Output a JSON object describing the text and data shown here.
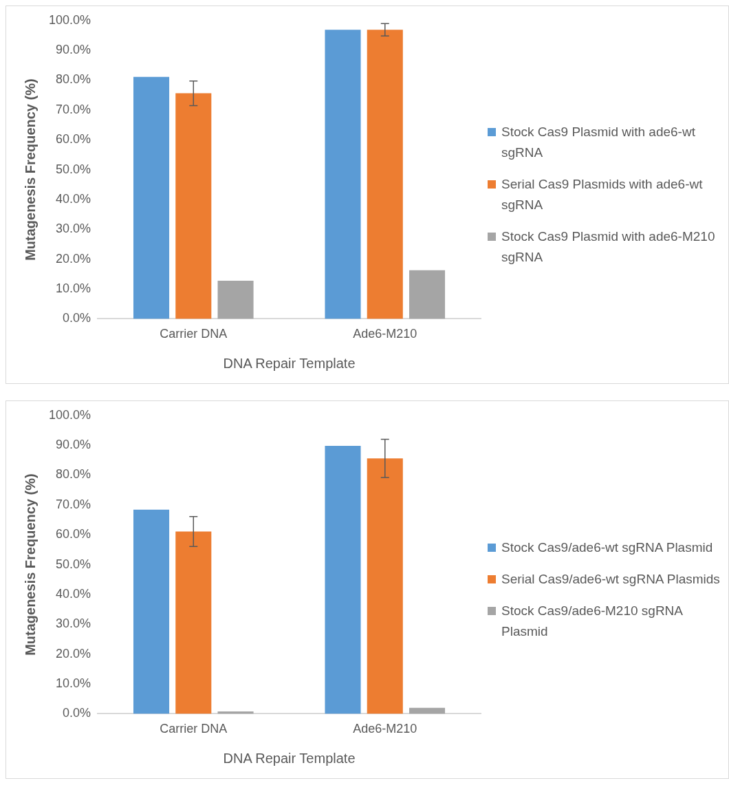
{
  "chart_data": [
    {
      "type": "bar",
      "xlabel": "DNA Repair Template",
      "ylabel": "Mutagenesis Frequency (%)",
      "categories": [
        "Carrier DNA",
        "Ade6-M210"
      ],
      "ylim": [
        0,
        100
      ],
      "yticks": [
        {
          "value": 0,
          "label": "0.0%"
        },
        {
          "value": 10,
          "label": "10.0%"
        },
        {
          "value": 20,
          "label": "20.0%"
        },
        {
          "value": 30,
          "label": "30.0%"
        },
        {
          "value": 40,
          "label": "40.0%"
        },
        {
          "value": 50,
          "label": "50.0%"
        },
        {
          "value": 60,
          "label": "60.0%"
        },
        {
          "value": 70,
          "label": "70.0%"
        },
        {
          "value": 80,
          "label": "80.0%"
        },
        {
          "value": 90,
          "label": "90.0%"
        },
        {
          "value": 100,
          "label": "100.0%"
        }
      ],
      "grid": false,
      "legend": "right",
      "series": [
        {
          "name": "Stock Cas9 Plasmid with ade6-wt sgRNA",
          "color": "#5b9bd5",
          "values": [
            81.1,
            96.9
          ]
        },
        {
          "name": "Serial Cas9 Plasmids with ade6-wt sgRNA",
          "color": "#ed7d31",
          "values": [
            75.6,
            96.9
          ],
          "errors": [
            4.1,
            2.1
          ]
        },
        {
          "name": "Stock Cas9 Plasmid with ade6-M210 sgRNA",
          "color": "#a5a5a5",
          "values": [
            12.8,
            16.3
          ]
        }
      ]
    },
    {
      "type": "bar",
      "xlabel": "DNA Repair Template",
      "ylabel": "Mutagenesis Frequency (%)",
      "categories": [
        "Carrier DNA",
        "Ade6-M210"
      ],
      "ylim": [
        0,
        100
      ],
      "yticks": [
        {
          "value": 0,
          "label": "0.0%"
        },
        {
          "value": 10,
          "label": "10.0%"
        },
        {
          "value": 20,
          "label": "20.0%"
        },
        {
          "value": 30,
          "label": "30.0%"
        },
        {
          "value": 40,
          "label": "40.0%"
        },
        {
          "value": 50,
          "label": "50.0%"
        },
        {
          "value": 60,
          "label": "60.0%"
        },
        {
          "value": 70,
          "label": "70.0%"
        },
        {
          "value": 80,
          "label": "80.0%"
        },
        {
          "value": 90,
          "label": "90.0%"
        },
        {
          "value": 100,
          "label": "100.0%"
        }
      ],
      "grid": false,
      "legend": "right",
      "series": [
        {
          "name": "Stock Cas9/ade6-wt sgRNA Plasmid",
          "color": "#5b9bd5",
          "values": [
            68.4,
            89.8
          ]
        },
        {
          "name": "Serial Cas9/ade6-wt sgRNA Plasmids",
          "color": "#ed7d31",
          "values": [
            61.1,
            85.6
          ],
          "errors": [
            5.0,
            6.4
          ]
        },
        {
          "name": "Stock Cas9/ade6-M210 sgRNA Plasmid",
          "color": "#a5a5a5",
          "values": [
            0.8,
            2.0
          ]
        }
      ]
    }
  ]
}
